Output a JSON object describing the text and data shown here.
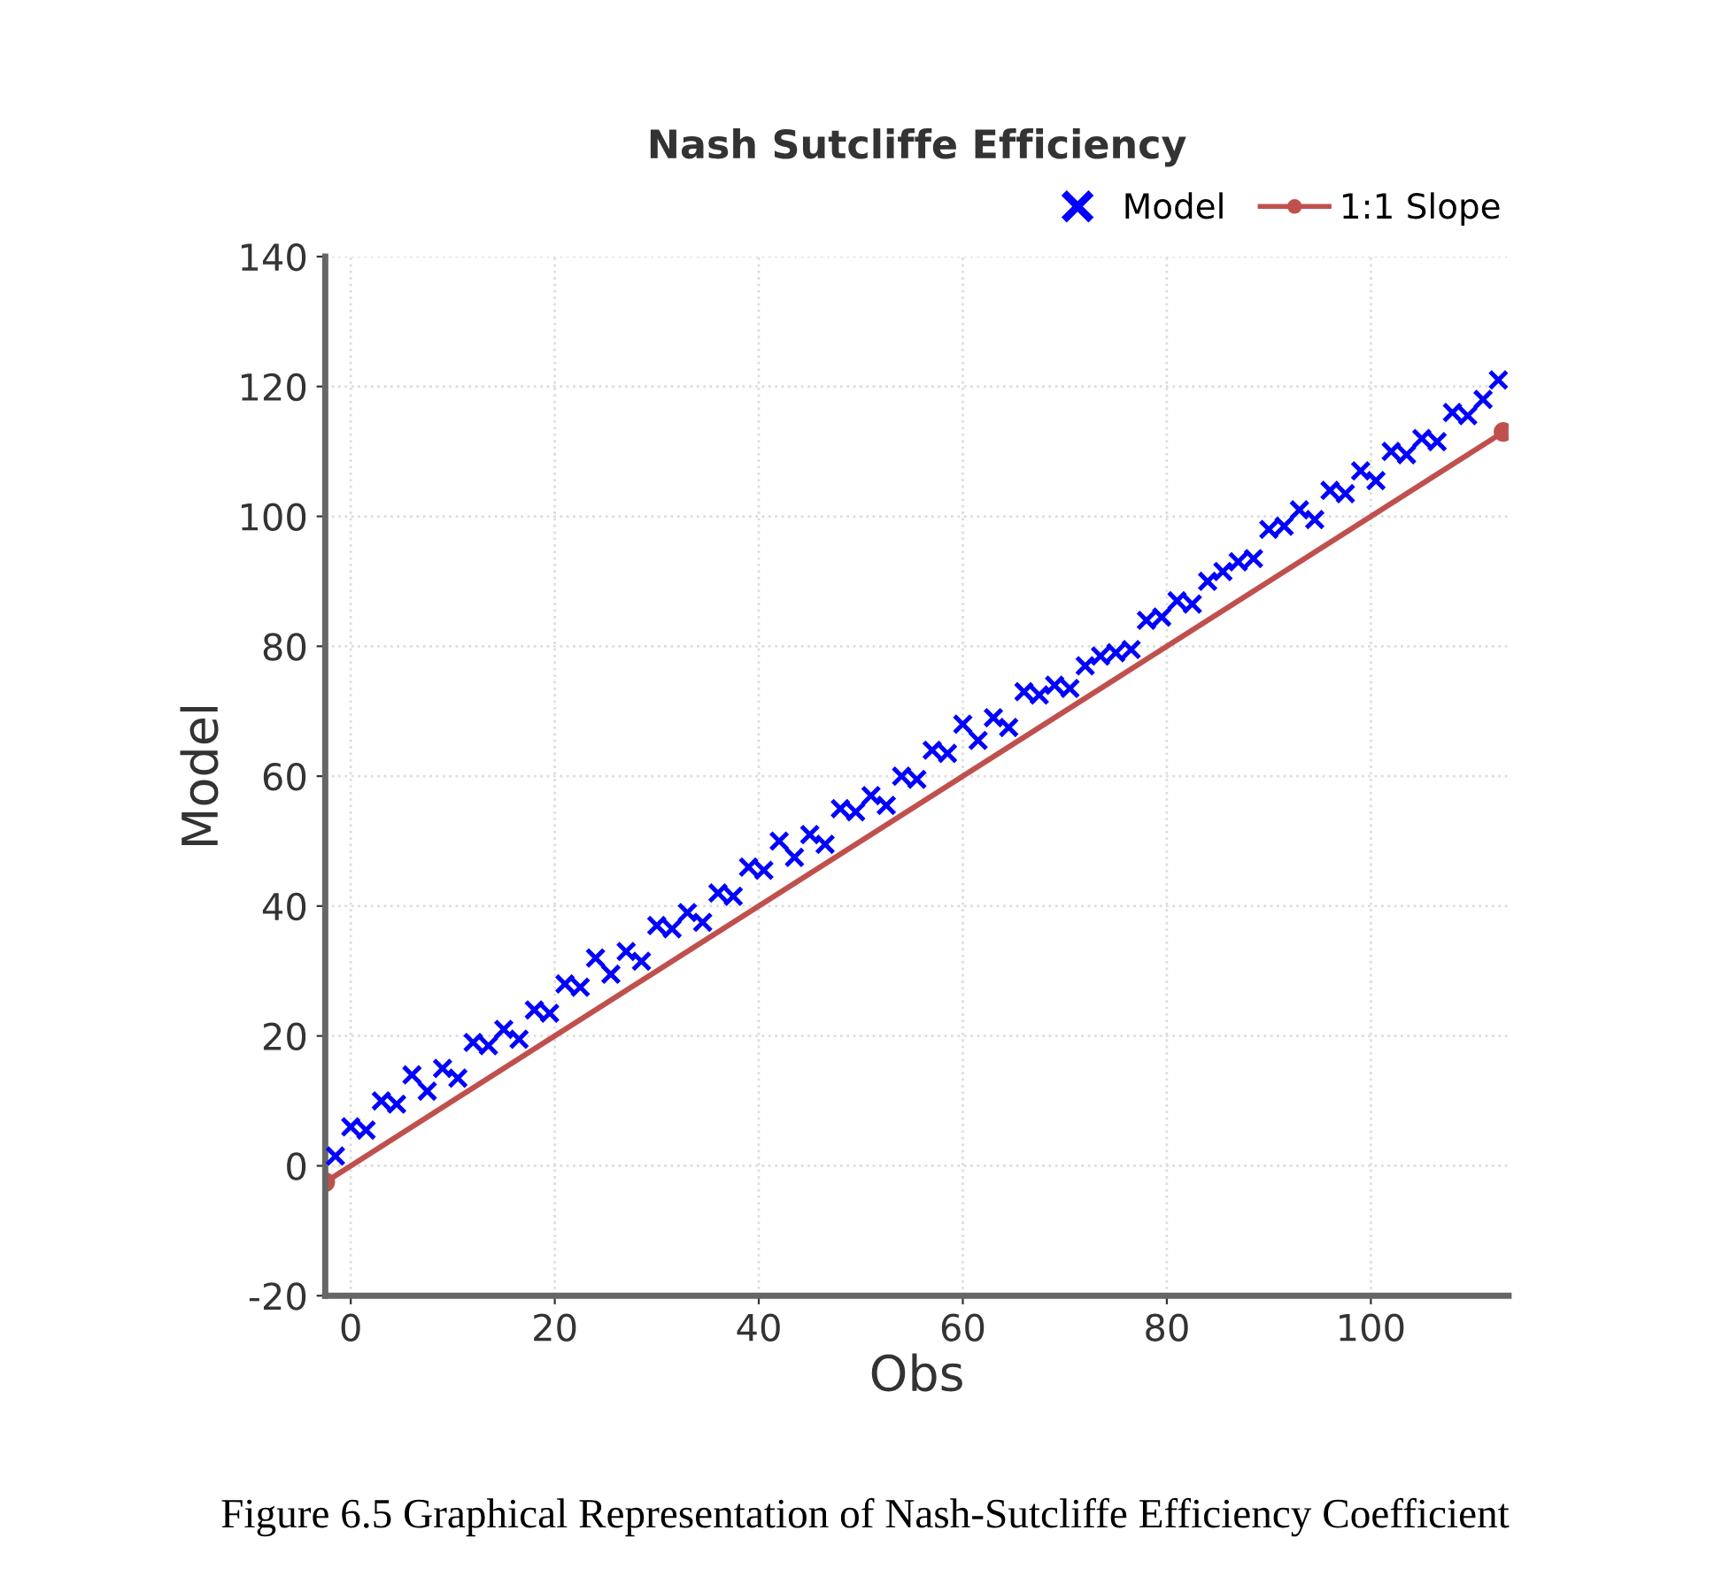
{
  "chart_data": {
    "type": "scatter",
    "title": "Nash Sutcliffe Efficiency",
    "xlabel": "Obs",
    "ylabel": "Model",
    "annotations": [
      "Figure 6.5 Graphical Representation of Nash-Sutcliffe Efficiency Coefficient"
    ],
    "series": [
      {
        "name": "Model",
        "color": "#0000ff",
        "marker": "cross",
        "x": [
          -1.5,
          0,
          1.5,
          3,
          4.5,
          6,
          7.5,
          9,
          10.5,
          12,
          13.5,
          15,
          16.5,
          18,
          19.5,
          21,
          22.5,
          24,
          25.5,
          27,
          28.5,
          30,
          31.5,
          33,
          34.5,
          36,
          37.5,
          39,
          40.5,
          42,
          43.5,
          45,
          46.5,
          48,
          49.5,
          51,
          52.5,
          54,
          55.5,
          57,
          58.5,
          60,
          61.5,
          63,
          64.5,
          66,
          67.5,
          69,
          70.5,
          72,
          73.5,
          75,
          76.5,
          78,
          79.5,
          81,
          82.5,
          84,
          85.5,
          87,
          88.5,
          90,
          91.5,
          93,
          94.5,
          96,
          97.5,
          99,
          100.5,
          102,
          103.5,
          105,
          106.5,
          108,
          109.5,
          111,
          112.5
        ],
        "values": [
          1.5,
          6,
          5.5,
          10,
          9.5,
          14,
          11.5,
          15,
          13.5,
          19,
          18.5,
          21,
          19.5,
          24,
          23.5,
          28,
          27.5,
          32,
          29.5,
          33,
          31.5,
          37,
          36.5,
          39,
          37.5,
          42,
          41.5,
          46,
          45.5,
          50,
          47.5,
          51,
          49.5,
          55,
          54.5,
          57,
          55.5,
          60,
          59.5,
          64,
          63.5,
          68,
          65.5,
          69,
          67.5,
          73,
          72.5,
          74,
          73.5,
          77,
          78.5,
          79,
          79.5,
          84,
          84.5,
          87,
          86.5,
          90,
          91.5,
          93,
          93.5,
          98,
          98.5,
          101,
          99.5,
          104,
          103.5,
          107,
          105.5,
          110,
          109.5,
          112,
          111.5,
          116,
          115.5,
          118,
          121
        ]
      },
      {
        "name": "1:1 Slope",
        "type": "line",
        "color": "#c0504d",
        "marker": "circle",
        "line_style": "solid",
        "x": [
          -2.5,
          113
        ],
        "values": [
          -2.5,
          113
        ]
      }
    ],
    "xlim": [
      -2.5,
      113.5
    ],
    "ylim": [
      -20,
      140
    ],
    "xticks": [
      0,
      20,
      40,
      60,
      80,
      100
    ],
    "yticks": [
      -20,
      0,
      20,
      40,
      60,
      80,
      100,
      120,
      140
    ],
    "grid": true,
    "legend": "top right"
  }
}
